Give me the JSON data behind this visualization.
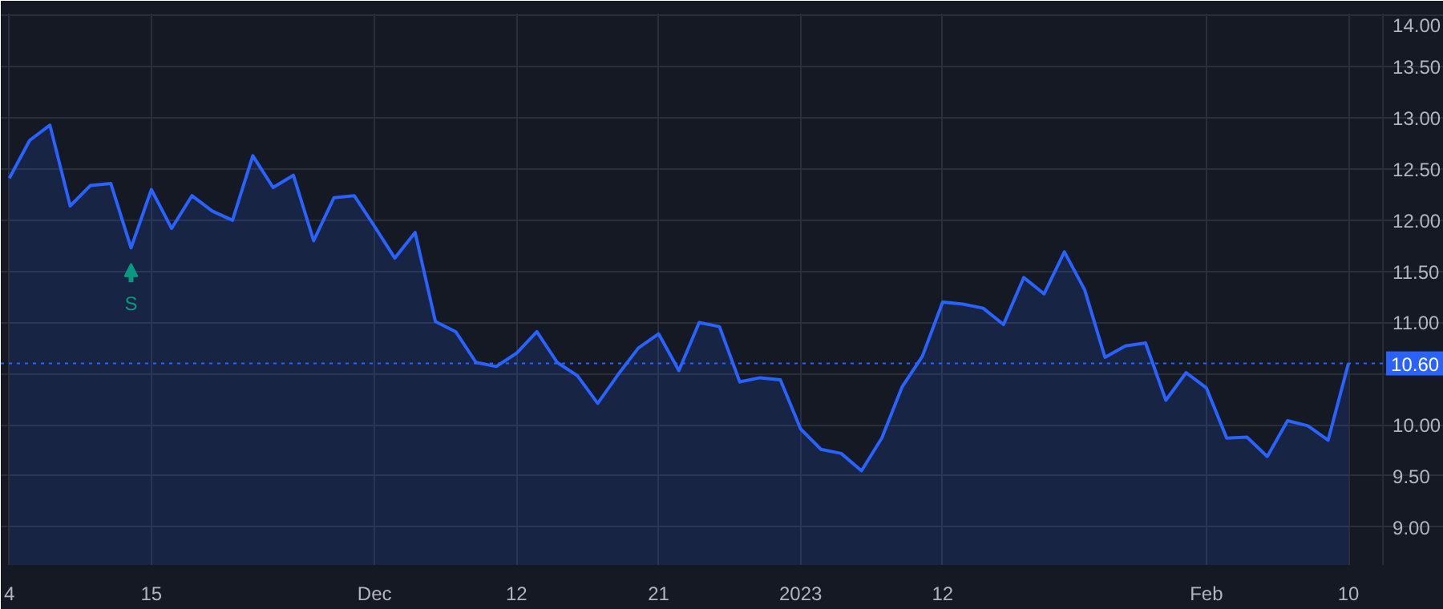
{
  "chart_data": {
    "type": "area",
    "categories": [
      "4",
      null,
      null,
      null,
      null,
      null,
      null,
      "15",
      null,
      null,
      null,
      null,
      null,
      null,
      null,
      null,
      null,
      null,
      "Dec",
      null,
      null,
      null,
      null,
      null,
      null,
      "12",
      null,
      null,
      null,
      null,
      null,
      null,
      "21",
      null,
      null,
      null,
      null,
      null,
      null,
      "2023",
      null,
      null,
      null,
      null,
      null,
      null,
      "12",
      null,
      null,
      null,
      null,
      null,
      null,
      null,
      null,
      null,
      null,
      null,
      null,
      "Feb",
      null,
      null,
      null,
      null,
      null,
      null,
      "10"
    ],
    "series": [
      {
        "color": "#2962ff",
        "values": [
          12.41,
          12.78,
          12.93,
          12.14,
          12.34,
          12.36,
          11.73,
          12.3,
          11.92,
          12.24,
          12.09,
          12.0,
          12.63,
          12.32,
          12.44,
          11.8,
          12.22,
          12.24,
          11.94,
          11.63,
          11.88,
          11.01,
          10.91,
          10.61,
          10.57,
          10.7,
          10.91,
          10.61,
          10.48,
          10.21,
          10.49,
          10.75,
          10.89,
          10.53,
          11.0,
          10.96,
          10.42,
          10.46,
          10.44,
          9.96,
          9.76,
          9.72,
          9.55,
          9.87,
          10.37,
          10.67,
          11.2,
          11.18,
          11.14,
          10.98,
          11.44,
          11.28,
          11.69,
          11.32,
          10.66,
          10.77,
          10.8,
          10.24,
          10.51,
          10.36,
          9.87,
          9.88,
          9.69,
          10.04,
          9.99,
          9.85,
          10.6
        ]
      }
    ],
    "ylim": [
      8.63,
      14.02
    ],
    "yticks": [
      {
        "value": 9,
        "label": "9.00"
      },
      {
        "value": 9.5,
        "label": "9.50"
      },
      {
        "value": 10,
        "label": "10.00"
      },
      {
        "value": 10.5,
        "label": null
      },
      {
        "value": 11,
        "label": "11.00"
      },
      {
        "value": 11.5,
        "label": "11.50"
      },
      {
        "value": 12,
        "label": "12.00"
      },
      {
        "value": 12.5,
        "label": "12.50"
      },
      {
        "value": 13,
        "label": "13.00"
      },
      {
        "value": 13.5,
        "label": "13.50"
      },
      {
        "value": 14,
        "label": "14.00"
      }
    ],
    "grid": true,
    "ref_lines": [
      {
        "axis": "y",
        "value": 10.6,
        "label": "10.60",
        "color": "#2962ff",
        "line_style": "dotted"
      }
    ],
    "annotations": [
      {
        "text": "S",
        "y": 11.73
      }
    ]
  }
}
